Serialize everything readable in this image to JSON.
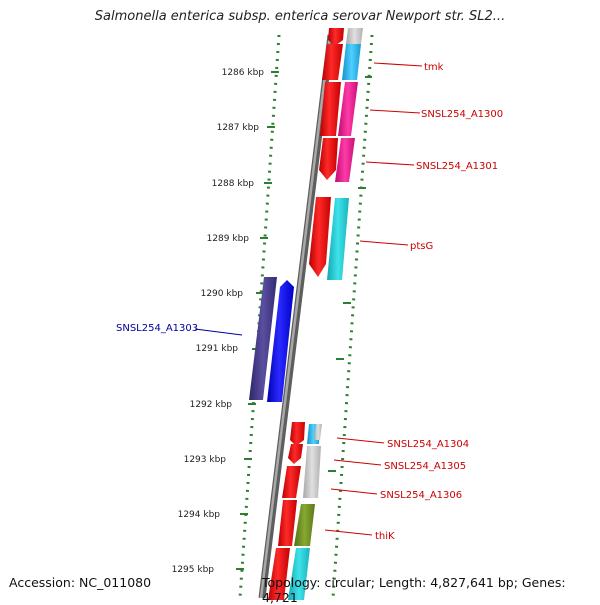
{
  "title": "Salmonella enterica subsp. enterica serovar Newport str. SL2...",
  "footer": {
    "accession": "Accession: NC_011080",
    "topology": "Topology: circular; Length: 4,827,641 bp; Genes: 4,721"
  },
  "scale": {
    "ticks": [
      "1286 kbp",
      "1287 kbp",
      "1288 kbp",
      "1289 kbp",
      "1290 kbp",
      "1291 kbp",
      "1292 kbp",
      "1293 kbp",
      "1294 kbp",
      "1295 kbp"
    ]
  },
  "genes": [
    {
      "label": "tmk",
      "color": "#cc0000",
      "strand": "forward"
    },
    {
      "label": "SNSL254_A1300",
      "color": "#cc0000",
      "strand": "forward"
    },
    {
      "label": "SNSL254_A1301",
      "color": "#cc0000",
      "strand": "forward"
    },
    {
      "label": "ptsG",
      "color": "#cc0000",
      "strand": "forward"
    },
    {
      "label": "SNSL254_A1303",
      "color": "#00009c",
      "strand": "reverse"
    },
    {
      "label": "SNSL254_A1304",
      "color": "#cc0000",
      "strand": "forward"
    },
    {
      "label": "SNSL254_A1305",
      "color": "#cc0000",
      "strand": "forward"
    },
    {
      "label": "SNSL254_A1306",
      "color": "#cc0000",
      "strand": "forward"
    },
    {
      "label": "thiK",
      "color": "#cc0000",
      "strand": "forward"
    }
  ],
  "colors": {
    "backbone": "#7a7a7a",
    "tick": "#2f7d2f",
    "forward_cds": "#ff0000",
    "reverse_cds": "#0000ff",
    "reverse_cog": "#4a3f8a",
    "cog_cyan": "#22c8d2",
    "cog_magenta": "#e6158c",
    "cog_gray": "#c4c4c4",
    "cog_olive": "#6b8c1e",
    "cog_skyblue": "#29b6e8"
  }
}
